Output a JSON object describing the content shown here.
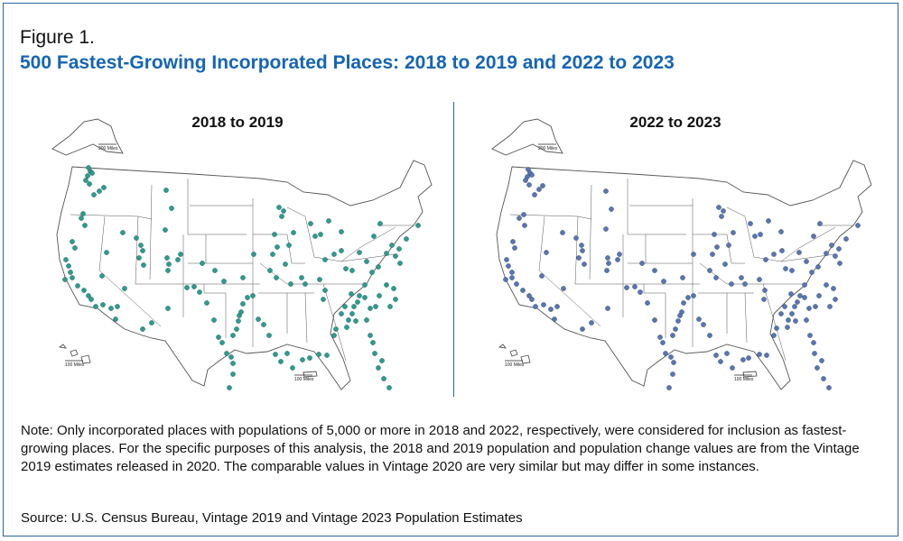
{
  "figure_label": "Figure 1.",
  "title": "500 Fastest-Growing Incorporated Places: 2018 to 2019 and 2022 to 2023",
  "maps": [
    {
      "title": "2018 to 2019",
      "dot_color": "#2a9d8f",
      "scale_labels": {
        "alaska": "200 Miles",
        "hawaii": "100 Miles",
        "puerto_rico": "100 Miles"
      }
    },
    {
      "title": "2022 to 2023",
      "dot_color": "#5b73b8",
      "scale_labels": {
        "alaska": "200 Miles",
        "hawaii": "100 Miles",
        "puerto_rico": "100 Miles"
      }
    }
  ],
  "note": "Note: Only incorporated places with populations of 5,000 or more in 2018 and 2022, respectively, were considered for inclusion as fastest-growing places. For the specific purposes of this analysis, the 2018 and 2019 population and population change values are from the Vintage 2019 estimates released in 2020. The comparable values in Vintage 2020 are very similar but may differ in some instances.",
  "source": "Source: U.S. Census Bureau, Vintage 2019 and Vintage 2023 Population Estimates",
  "colors": {
    "title_blue": "#1565b6",
    "frame_blue": "#2a64a8",
    "state_outline": "#555555"
  }
}
